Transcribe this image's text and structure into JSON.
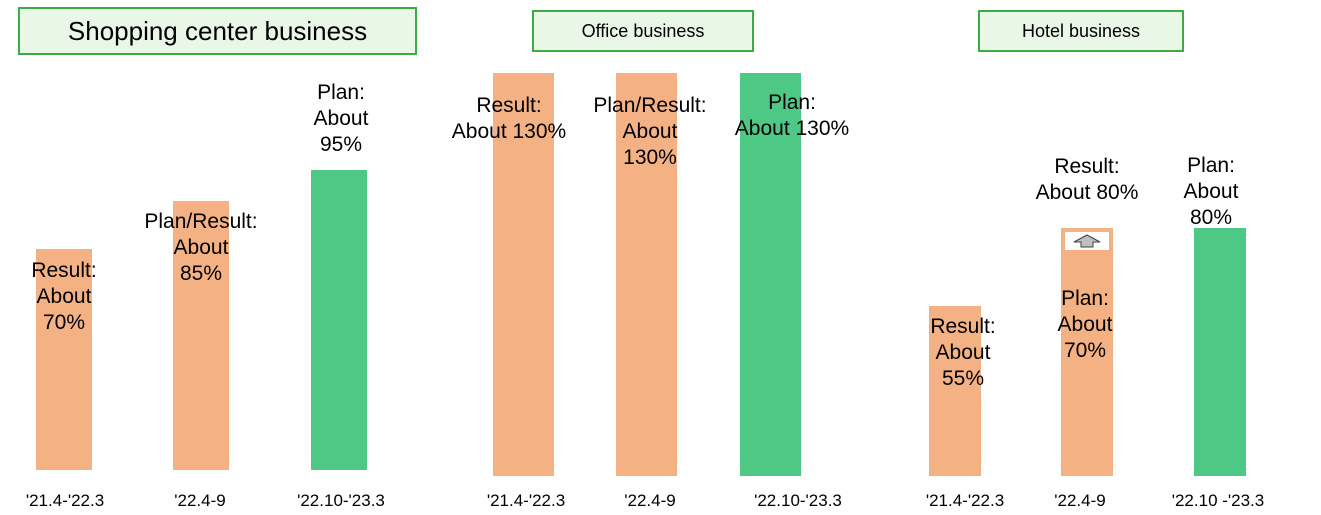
{
  "colors": {
    "result": "#f4b183",
    "plan": "#4dc985",
    "title_fill": "#e9f7e6",
    "title_border": "#3dac45"
  },
  "chart_data": [
    {
      "type": "bar",
      "title": "Shopping center business",
      "categories": [
        "'21.4-'22.3",
        "'22.4-9",
        "'22.10-'23.3"
      ],
      "values": [
        70,
        85,
        95
      ],
      "labels": [
        "Result:\nAbout\n70%",
        "Plan/Result:\nAbout\n85%",
        "Plan:\nAbout\n95%"
      ],
      "kinds": [
        "result",
        "result",
        "plan"
      ],
      "unit": "%"
    },
    {
      "type": "bar",
      "title": "Office business",
      "categories": [
        "'21.4-'22.3",
        "'22.4-9",
        "'22.10-'23.3"
      ],
      "values": [
        130,
        130,
        130
      ],
      "labels": [
        "Result:\nAbout 130%",
        "Plan/Result:\nAbout\n130%",
        "Plan:\nAbout 130%"
      ],
      "kinds": [
        "result",
        "result",
        "plan"
      ],
      "unit": "%"
    },
    {
      "type": "bar",
      "title": "Hotel business",
      "categories": [
        "'21.4-'22.3",
        "'22.4-9",
        "'22.10 -'23.3"
      ],
      "values": [
        55,
        70,
        80
      ],
      "labels": [
        "Result:\nAbout\n55%",
        "Plan:\nAbout\n70%",
        "Plan:\nAbout\n80%"
      ],
      "kinds": [
        "result",
        "result",
        "plan"
      ],
      "unit": "%",
      "annotation": {
        "bar": "'22.4-9",
        "label": "Result:\nAbout 80%",
        "value": 80,
        "icon": "up-arrow-icon"
      }
    }
  ]
}
